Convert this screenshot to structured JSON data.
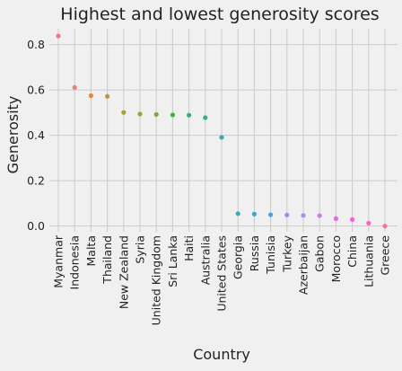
{
  "chart_data": {
    "type": "scatter",
    "title": "Highest and lowest generosity scores",
    "xlabel": "Country",
    "ylabel": "Generosity",
    "ylim": [
      -0.025,
      0.87
    ],
    "yticks": [
      "0.0",
      "0.2",
      "0.4",
      "0.6",
      "0.8"
    ],
    "grid": true,
    "legend": "none",
    "categories": [
      "Myanmar",
      "Indonesia",
      "Malta",
      "Thailand",
      "New Zealand",
      "Syria",
      "United Kingdom",
      "Sri Lanka",
      "Haiti",
      "Australia",
      "United States",
      "Georgia",
      "Russia",
      "Tunisia",
      "Turkey",
      "Azerbaijan",
      "Gabon",
      "Morocco",
      "China",
      "Lithuania",
      "Greece"
    ],
    "values": [
      0.838,
      0.611,
      0.575,
      0.572,
      0.501,
      0.494,
      0.492,
      0.49,
      0.489,
      0.478,
      0.391,
      0.055,
      0.053,
      0.05,
      0.049,
      0.047,
      0.046,
      0.033,
      0.029,
      0.013,
      0.0
    ],
    "colors": [
      "#f77189",
      "#f0826c",
      "#dd8d32",
      "#c69533",
      "#ae9d31",
      "#9ea431",
      "#76ac32",
      "#39b33b",
      "#34af71",
      "#35ad8b",
      "#36abb0",
      "#37aabd",
      "#39a7d0",
      "#3ba3ec",
      "#8a97f4",
      "#a48cf4",
      "#cc7af4",
      "#e16ae6",
      "#f461dd",
      "#f56cbc",
      "#f7709b"
    ]
  }
}
